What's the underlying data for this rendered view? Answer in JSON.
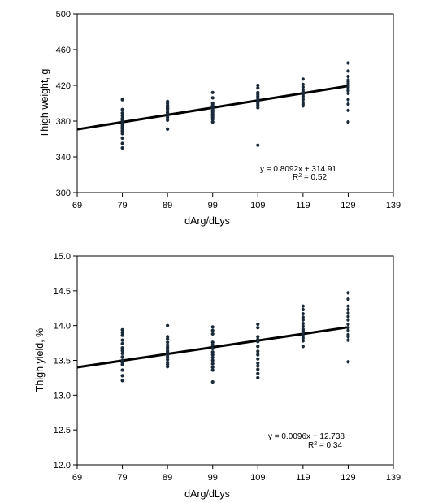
{
  "chart_data": [
    {
      "type": "scatter",
      "ylabel": "Thigh weight, g",
      "xlabel": "dArg/dLys",
      "xlim": [
        69,
        139
      ],
      "ylim": [
        300,
        500
      ],
      "x_ticks": [
        69,
        79,
        89,
        99,
        109,
        119,
        129,
        139
      ],
      "y_ticks": [
        300,
        340,
        380,
        420,
        460,
        500
      ],
      "x_tick_labels": [
        "69",
        "79",
        "89",
        "99",
        "109",
        "119",
        "129",
        "139"
      ],
      "y_tick_labels": [
        "300",
        "340",
        "380",
        "420",
        "460",
        "500"
      ],
      "grid": false,
      "series": [
        {
          "x": [
            79,
            79,
            79,
            79,
            79,
            79,
            79,
            79,
            79,
            79,
            79,
            79,
            79,
            79,
            79,
            79,
            89,
            89,
            89,
            89,
            89,
            89,
            89,
            89,
            89,
            89,
            89,
            89,
            89,
            89,
            89,
            99,
            99,
            99,
            99,
            99,
            99,
            99,
            99,
            99,
            99,
            99,
            99,
            99,
            99,
            109,
            109,
            109,
            109,
            109,
            109,
            109,
            109,
            109,
            109,
            109,
            109,
            119,
            119,
            119,
            119,
            119,
            119,
            119,
            119,
            119,
            119,
            119,
            119,
            119,
            119,
            129,
            129,
            129,
            129,
            129,
            129,
            129,
            129,
            129,
            129,
            129,
            129,
            129,
            129,
            129
          ],
          "y": [
            350,
            355,
            361,
            366,
            369,
            371,
            373,
            375,
            377,
            379,
            381,
            383,
            386,
            389,
            393,
            404,
            371,
            381,
            384,
            386,
            387,
            388,
            389,
            390,
            393,
            394,
            395,
            396,
            398,
            400,
            402,
            379,
            382,
            384,
            386,
            388,
            390,
            392,
            394,
            395,
            396,
            398,
            400,
            406,
            412,
            353,
            395,
            398,
            400,
            402,
            404,
            406,
            408,
            410,
            412,
            417,
            420,
            397,
            399,
            401,
            404,
            406,
            408,
            410,
            411,
            412,
            413,
            415,
            418,
            421,
            427,
            379,
            392,
            399,
            404,
            411,
            414,
            416,
            418,
            420,
            422,
            424,
            426,
            430,
            436,
            445
          ]
        }
      ],
      "trendline": {
        "slope": 0.8092,
        "intercept": 314.91
      },
      "equation": "y = 0.8092x + 314.91",
      "r2_label": "R",
      "r2_sup": "2",
      "r2_value": " = 0.52"
    },
    {
      "type": "scatter",
      "ylabel": "Thigh yield, %",
      "xlabel": "dArg/dLys",
      "xlim": [
        69,
        139
      ],
      "ylim": [
        12.0,
        15.0
      ],
      "x_ticks": [
        69,
        79,
        89,
        99,
        109,
        119,
        129,
        139
      ],
      "y_ticks": [
        12.0,
        12.5,
        13.0,
        13.5,
        14.0,
        14.5,
        15.0
      ],
      "x_tick_labels": [
        "69",
        "79",
        "89",
        "99",
        "109",
        "119",
        "129",
        "139"
      ],
      "y_tick_labels": [
        "12.0",
        "12.5",
        "13.0",
        "13.5",
        "14.0",
        "14.5",
        "15.0"
      ],
      "grid": false,
      "series": [
        {
          "x": [
            79,
            79,
            79,
            79,
            79,
            79,
            79,
            79,
            79,
            79,
            79,
            79,
            79,
            79,
            79,
            89,
            89,
            89,
            89,
            89,
            89,
            89,
            89,
            89,
            89,
            89,
            89,
            89,
            89,
            89,
            89,
            99,
            99,
            99,
            99,
            99,
            99,
            99,
            99,
            99,
            99,
            99,
            99,
            99,
            99,
            109,
            109,
            109,
            109,
            109,
            109,
            109,
            109,
            109,
            109,
            109,
            109,
            109,
            109,
            119,
            119,
            119,
            119,
            119,
            119,
            119,
            119,
            119,
            119,
            119,
            119,
            119,
            119,
            119,
            129,
            129,
            129,
            129,
            129,
            129,
            129,
            129,
            129,
            129,
            129,
            129,
            129,
            129
          ],
          "y": [
            13.21,
            13.28,
            13.36,
            13.44,
            13.47,
            13.5,
            13.55,
            13.6,
            13.64,
            13.68,
            13.74,
            13.79,
            13.86,
            13.9,
            13.94,
            13.41,
            13.44,
            13.47,
            13.51,
            13.55,
            13.58,
            13.6,
            13.62,
            13.64,
            13.67,
            13.69,
            13.72,
            13.76,
            13.81,
            13.84,
            14.0,
            13.19,
            13.36,
            13.4,
            13.45,
            13.5,
            13.54,
            13.58,
            13.62,
            13.67,
            13.72,
            13.76,
            13.88,
            13.93,
            13.98,
            13.25,
            13.31,
            13.37,
            13.42,
            13.46,
            13.52,
            13.58,
            13.63,
            13.7,
            13.77,
            13.8,
            13.84,
            13.97,
            14.02,
            13.7,
            13.78,
            13.82,
            13.85,
            13.88,
            13.91,
            13.93,
            13.95,
            13.99,
            14.03,
            14.08,
            14.12,
            14.17,
            14.23,
            14.28,
            13.48,
            13.79,
            13.84,
            13.87,
            13.93,
            13.97,
            14.02,
            14.08,
            14.13,
            14.18,
            14.23,
            14.28,
            14.38,
            14.47
          ]
        }
      ],
      "trendline": {
        "slope": 0.0096,
        "intercept": 12.738
      },
      "equation": "y = 0.0096x + 12.738",
      "r2_label": "R",
      "r2_sup": "2",
      "r2_value": " = 0.34"
    }
  ]
}
